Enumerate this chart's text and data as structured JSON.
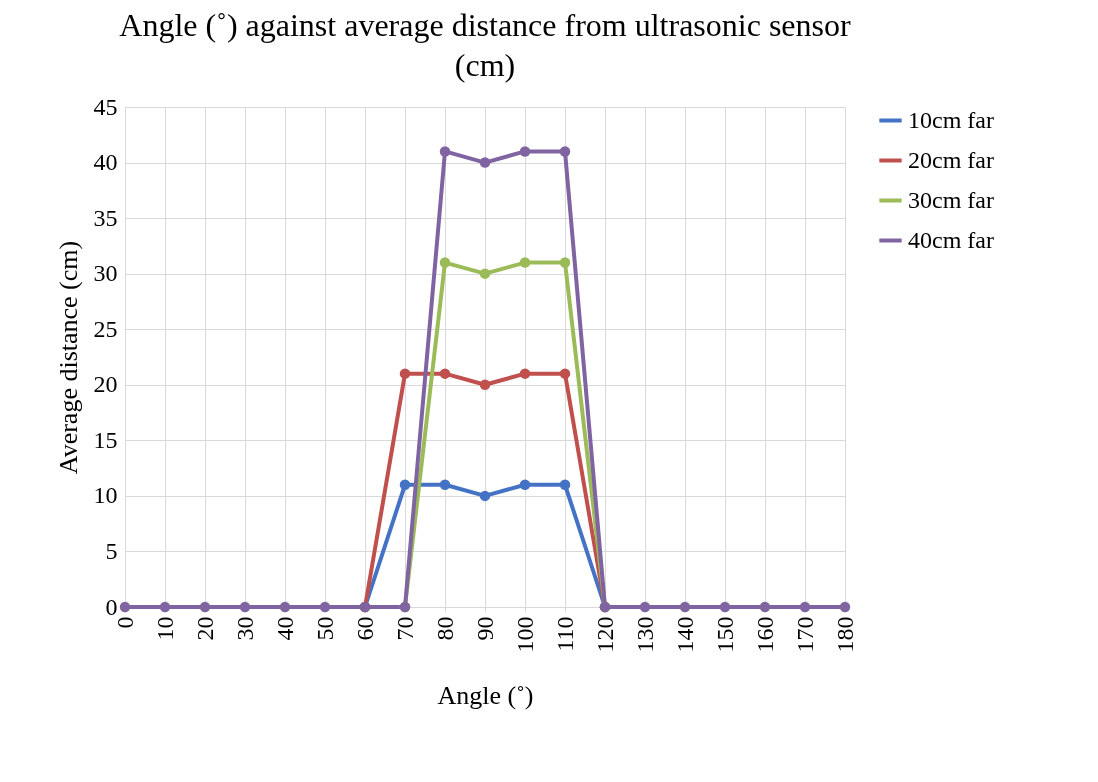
{
  "chart_data": {
    "type": "line",
    "title": "Angle (˚) against average distance from ultrasonic sensor (cm)",
    "xlabel": "Angle (˚)",
    "ylabel": "Average distance (cm)",
    "categories": [
      "0",
      "10",
      "20",
      "30",
      "40",
      "50",
      "60",
      "70",
      "80",
      "90",
      "100",
      "110",
      "120",
      "130",
      "140",
      "150",
      "160",
      "170",
      "180"
    ],
    "series": [
      {
        "name": "10cm far",
        "color": "#4472c4",
        "values": [
          null,
          null,
          null,
          null,
          null,
          null,
          0,
          11,
          11,
          10,
          11,
          11,
          0,
          null,
          null,
          null,
          null,
          null,
          null
        ]
      },
      {
        "name": "20cm far",
        "color": "#c0504d",
        "values": [
          null,
          null,
          null,
          null,
          null,
          null,
          0,
          21,
          21,
          20,
          21,
          21,
          0,
          null,
          null,
          null,
          null,
          null,
          null
        ]
      },
      {
        "name": "30cm far",
        "color": "#9bbb59",
        "values": [
          null,
          null,
          null,
          null,
          null,
          null,
          null,
          0,
          31,
          30,
          31,
          31,
          0,
          null,
          null,
          null,
          null,
          null,
          null
        ]
      },
      {
        "name": "40cm far",
        "color": "#8064a2",
        "values": [
          0,
          0,
          0,
          0,
          0,
          0,
          0,
          0,
          41,
          40,
          41,
          41,
          0,
          0,
          0,
          0,
          0,
          0,
          0
        ]
      }
    ],
    "ylim": [
      0,
      45
    ],
    "yticks": [
      0,
      5,
      10,
      15,
      20,
      25,
      30,
      35,
      40,
      45
    ],
    "grid": true,
    "legend": "right",
    "marker": "circle",
    "line_style": "solid"
  }
}
